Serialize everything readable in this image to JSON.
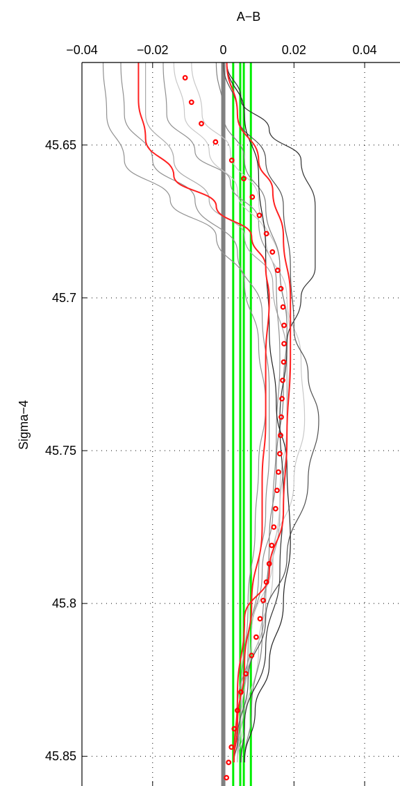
{
  "chart_data": {
    "type": "line",
    "xlabel": "A−B",
    "ylabel": "Sigma−4",
    "xlim": [
      -0.04,
      0.05
    ],
    "ylim": [
      45.85,
      45.623
    ],
    "y_reversed": true,
    "x_axis_position": "top",
    "grid": true,
    "x_ticks": [
      -0.04,
      -0.02,
      0,
      0.02,
      0.04
    ],
    "x_tick_labels": [
      "−0.04",
      "−0.02",
      "0",
      "0.02",
      "0.04"
    ],
    "y_ticks": [
      45.65,
      45.7,
      45.75,
      45.8,
      45.85
    ],
    "y_tick_labels": [
      "45.65",
      "45.7",
      "45.75",
      "45.8",
      "45.85"
    ],
    "vertical_reference_lines": [
      {
        "x": 0.0,
        "color": "#808080",
        "role": "zero"
      },
      {
        "x": 0.0028,
        "color": "#00ee00"
      },
      {
        "x": 0.0048,
        "color": "#00ee00"
      },
      {
        "x": 0.0058,
        "color": "#00ee00"
      },
      {
        "x": 0.0078,
        "color": "#00ee00"
      }
    ],
    "series": [
      {
        "color": "#909090",
        "points": [
          [
            -0.034,
            45.623
          ],
          [
            -0.033,
            45.64
          ],
          [
            -0.028,
            45.655
          ],
          [
            -0.015,
            45.668
          ],
          [
            -0.002,
            45.68
          ],
          [
            0.006,
            45.695
          ],
          [
            0.01,
            45.715
          ],
          [
            0.012,
            45.735
          ],
          [
            0.01,
            45.755
          ],
          [
            0.009,
            45.775
          ],
          [
            0.007,
            45.8
          ],
          [
            0.005,
            45.83
          ],
          [
            0.004,
            45.852
          ]
        ]
      },
      {
        "color": "#909090",
        "points": [
          [
            -0.029,
            45.623
          ],
          [
            -0.028,
            45.64
          ],
          [
            -0.02,
            45.655
          ],
          [
            -0.008,
            45.668
          ],
          [
            0.004,
            45.685
          ],
          [
            0.011,
            45.705
          ],
          [
            0.013,
            45.73
          ],
          [
            0.013,
            45.75
          ],
          [
            0.012,
            45.77
          ],
          [
            0.01,
            45.79
          ],
          [
            0.007,
            45.815
          ],
          [
            0.004,
            45.84
          ],
          [
            0.003,
            45.852
          ]
        ]
      },
      {
        "color": "#a8a8a8",
        "points": [
          [
            -0.022,
            45.623
          ],
          [
            -0.022,
            45.64
          ],
          [
            -0.014,
            45.655
          ],
          [
            -0.004,
            45.668
          ],
          [
            0.006,
            45.68
          ],
          [
            0.014,
            45.695
          ],
          [
            0.018,
            45.72
          ],
          [
            0.018,
            45.745
          ],
          [
            0.016,
            45.77
          ],
          [
            0.012,
            45.8
          ],
          [
            0.006,
            45.83
          ],
          [
            0.004,
            45.852
          ]
        ]
      },
      {
        "color": "#909090",
        "points": [
          [
            -0.017,
            45.623
          ],
          [
            -0.016,
            45.64
          ],
          [
            -0.008,
            45.652
          ],
          [
            0.002,
            45.662
          ],
          [
            0.01,
            45.675
          ],
          [
            0.015,
            45.695
          ],
          [
            0.016,
            45.72
          ],
          [
            0.015,
            45.745
          ],
          [
            0.014,
            45.77
          ],
          [
            0.011,
            45.79
          ],
          [
            0.008,
            45.81
          ],
          [
            0.004,
            45.835
          ],
          [
            0.003,
            45.852
          ]
        ]
      },
      {
        "color": "#c8c8c8",
        "points": [
          [
            -0.014,
            45.623
          ],
          [
            -0.011,
            45.64
          ],
          [
            -0.004,
            45.652
          ],
          [
            0.004,
            45.665
          ],
          [
            0.012,
            45.68
          ],
          [
            0.018,
            45.7
          ],
          [
            0.022,
            45.72
          ],
          [
            0.023,
            45.74
          ],
          [
            0.02,
            45.76
          ],
          [
            0.014,
            45.785
          ],
          [
            0.008,
            45.81
          ],
          [
            0.005,
            45.84
          ],
          [
            0.004,
            45.852
          ]
        ]
      },
      {
        "color": "#c8c8c8",
        "points": [
          [
            -0.009,
            45.623
          ],
          [
            -0.006,
            45.64
          ],
          [
            0.002,
            45.652
          ],
          [
            0.01,
            45.668
          ],
          [
            0.016,
            45.69
          ],
          [
            0.019,
            45.715
          ],
          [
            0.018,
            45.74
          ],
          [
            0.016,
            45.765
          ],
          [
            0.014,
            45.79
          ],
          [
            0.01,
            45.815
          ],
          [
            0.006,
            45.84
          ],
          [
            0.004,
            45.852
          ]
        ]
      },
      {
        "color": "#808080",
        "points": [
          [
            -0.002,
            45.623
          ],
          [
            0.0,
            45.64
          ],
          [
            0.006,
            45.655
          ],
          [
            0.012,
            45.67
          ],
          [
            0.016,
            45.69
          ],
          [
            0.018,
            45.71
          ],
          [
            0.017,
            45.73
          ],
          [
            0.015,
            45.755
          ],
          [
            0.013,
            45.78
          ],
          [
            0.011,
            45.81
          ],
          [
            0.008,
            45.835
          ],
          [
            0.006,
            45.852
          ]
        ]
      },
      {
        "color": "#303030",
        "points": [
          [
            0.001,
            45.623
          ],
          [
            0.005,
            45.635
          ],
          [
            0.013,
            45.645
          ],
          [
            0.022,
            45.655
          ],
          [
            0.026,
            45.67
          ],
          [
            0.026,
            45.69
          ],
          [
            0.022,
            45.7
          ],
          [
            0.018,
            45.715
          ],
          [
            0.016,
            45.74
          ],
          [
            0.017,
            45.765
          ],
          [
            0.016,
            45.79
          ],
          [
            0.012,
            45.815
          ],
          [
            0.006,
            45.84
          ],
          [
            0.005,
            45.852
          ]
        ]
      },
      {
        "color": "#505050",
        "points": [
          [
            0.0,
            45.623
          ],
          [
            0.004,
            45.64
          ],
          [
            0.012,
            45.655
          ],
          [
            0.017,
            45.67
          ],
          [
            0.019,
            45.69
          ],
          [
            0.02,
            45.71
          ],
          [
            0.024,
            45.725
          ],
          [
            0.027,
            45.74
          ],
          [
            0.024,
            45.76
          ],
          [
            0.018,
            45.785
          ],
          [
            0.012,
            45.805
          ],
          [
            0.007,
            45.825
          ],
          [
            0.004,
            45.845
          ],
          [
            0.003,
            45.852
          ]
        ]
      },
      {
        "color": "#202020",
        "points": [
          [
            0.001,
            45.623
          ],
          [
            0.006,
            45.64
          ],
          [
            0.01,
            45.66
          ],
          [
            0.012,
            45.685
          ],
          [
            0.013,
            45.71
          ],
          [
            0.015,
            45.735
          ],
          [
            0.018,
            45.755
          ],
          [
            0.019,
            45.78
          ],
          [
            0.017,
            45.8
          ],
          [
            0.013,
            45.82
          ],
          [
            0.009,
            45.835
          ],
          [
            0.006,
            45.852
          ]
        ]
      },
      {
        "color": "#ff2020",
        "width": 2,
        "points": [
          [
            -0.024,
            45.623
          ],
          [
            -0.024,
            45.635
          ],
          [
            -0.022,
            45.648
          ],
          [
            -0.014,
            45.66
          ],
          [
            -0.002,
            45.67
          ],
          [
            0.008,
            45.68
          ],
          [
            0.012,
            45.69
          ],
          [
            0.013,
            45.7
          ],
          [
            0.012,
            45.72
          ],
          [
            0.012,
            45.74
          ],
          [
            0.011,
            45.76
          ],
          [
            0.011,
            45.775
          ],
          [
            0.008,
            45.8
          ],
          [
            0.006,
            45.82
          ],
          [
            0.004,
            45.84
          ],
          [
            0.003,
            45.852
          ]
        ]
      },
      {
        "color": "#ff2020",
        "width": 2,
        "points": [
          [
            0.001,
            45.623
          ],
          [
            0.004,
            45.64
          ],
          [
            0.01,
            45.655
          ],
          [
            0.014,
            45.665
          ],
          [
            0.017,
            45.68
          ],
          [
            0.019,
            45.7
          ],
          [
            0.019,
            45.72
          ],
          [
            0.018,
            45.745
          ],
          [
            0.017,
            45.77
          ],
          [
            0.013,
            45.79
          ],
          [
            0.006,
            45.805
          ],
          [
            0.004,
            45.83
          ],
          [
            0.003,
            45.852
          ]
        ]
      }
    ],
    "marker_series": {
      "color": "#ff0000",
      "marker": "circle",
      "points": [
        [
          -0.0108,
          45.628
        ],
        [
          -0.009,
          45.636
        ],
        [
          -0.0062,
          45.643
        ],
        [
          -0.0022,
          45.649
        ],
        [
          0.0024,
          45.655
        ],
        [
          0.0058,
          45.661
        ],
        [
          0.0082,
          45.667
        ],
        [
          0.0102,
          45.673
        ],
        [
          0.0122,
          45.679
        ],
        [
          0.0139,
          45.685
        ],
        [
          0.0154,
          45.691
        ],
        [
          0.0163,
          45.697
        ],
        [
          0.0169,
          45.703
        ],
        [
          0.0172,
          45.709
        ],
        [
          0.0172,
          45.715
        ],
        [
          0.0171,
          45.721
        ],
        [
          0.0168,
          45.727
        ],
        [
          0.0166,
          45.733
        ],
        [
          0.0164,
          45.739
        ],
        [
          0.0162,
          45.745
        ],
        [
          0.016,
          45.751
        ],
        [
          0.0156,
          45.757
        ],
        [
          0.0152,
          45.763
        ],
        [
          0.0148,
          45.769
        ],
        [
          0.0143,
          45.775
        ],
        [
          0.0137,
          45.781
        ],
        [
          0.013,
          45.787
        ],
        [
          0.0122,
          45.793
        ],
        [
          0.0113,
          45.799
        ],
        [
          0.0104,
          45.805
        ],
        [
          0.0093,
          45.811
        ],
        [
          0.008,
          45.817
        ],
        [
          0.0064,
          45.823
        ],
        [
          0.005,
          45.829
        ],
        [
          0.004,
          45.835
        ],
        [
          0.0031,
          45.841
        ],
        [
          0.0023,
          45.847
        ],
        [
          0.0015,
          45.852
        ],
        [
          0.0009,
          45.857
        ],
        [
          0.0004,
          45.861
        ],
        [
          0.0001,
          45.865
        ],
        [
          0.0006,
          45.868
        ]
      ]
    }
  }
}
